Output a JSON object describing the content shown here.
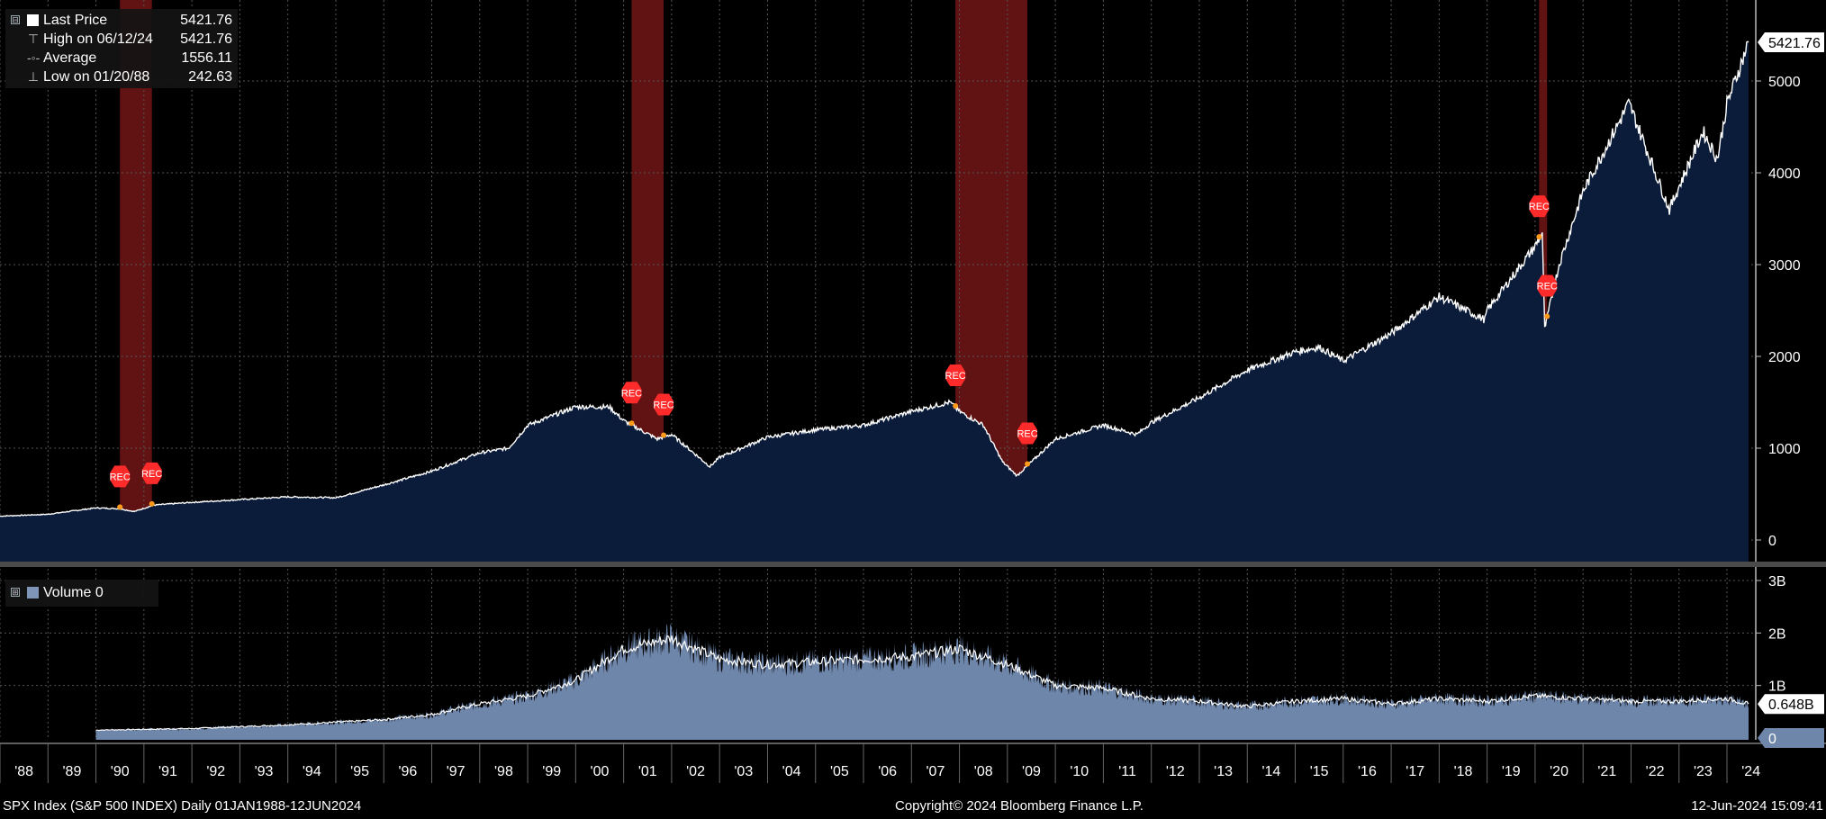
{
  "legend": {
    "last_price_label": "Last Price",
    "last_price_value": "5421.76",
    "high_label": "High on 06/12/24",
    "high_value": "5421.76",
    "average_label": "Average",
    "average_value": "1556.11",
    "low_label": "Low on 01/20/88",
    "low_value": "242.63",
    "volume_label": "Volume 0",
    "expand_glyph": "⊟",
    "expand_glyph_vol": "⊞"
  },
  "footer": {
    "left": "SPX Index (S&P 500 INDEX)  Daily 01JAN1988-12JUN2024",
    "mid": "Copyright© 2024 Bloomberg Finance L.P.",
    "right": "12-Jun-2024 15:09:41"
  },
  "colors": {
    "background": "#000000",
    "price_area": "#0b1c3a",
    "price_line": "#ffffff",
    "volume_area": "#6f86ab",
    "recession_band": "#8a1a1a",
    "rec_marker": "#ff2a2a",
    "grid": "#3a3a3a"
  },
  "chart_data": [
    {
      "type": "area",
      "title": "SPX Index (S&P 500 INDEX)",
      "series": [
        {
          "name": "Last Price",
          "x": [
            1988.0,
            1989.0,
            1990.0,
            1990.5,
            1990.8,
            1991.2,
            1992.0,
            1993.0,
            1994.0,
            1995.0,
            1996.0,
            1997.0,
            1998.0,
            1998.6,
            1999.0,
            2000.0,
            2000.7,
            2001.0,
            2001.7,
            2002.0,
            2002.8,
            2003.0,
            2004.0,
            2005.0,
            2006.0,
            2007.0,
            2007.8,
            2008.0,
            2008.5,
            2008.9,
            2009.2,
            2010.0,
            2011.0,
            2011.7,
            2012.0,
            2013.0,
            2014.0,
            2015.0,
            2015.5,
            2016.0,
            2017.0,
            2018.0,
            2018.95,
            2019.0,
            2020.0,
            2020.15,
            2020.2,
            2020.5,
            2021.0,
            2021.95,
            2022.0,
            2022.8,
            2023.0,
            2023.5,
            2023.8,
            2024.0,
            2024.45
          ],
          "values": [
            260,
            280,
            350,
            340,
            310,
            380,
            410,
            440,
            470,
            460,
            600,
            750,
            950,
            1000,
            1250,
            1450,
            1450,
            1300,
            1100,
            1150,
            800,
            900,
            1120,
            1200,
            1250,
            1400,
            1500,
            1400,
            1250,
            850,
            700,
            1100,
            1250,
            1150,
            1280,
            1550,
            1850,
            2050,
            2100,
            1950,
            2250,
            2650,
            2400,
            2500,
            3200,
            3350,
            2300,
            3000,
            3800,
            4750,
            4700,
            3600,
            3850,
            4450,
            4150,
            4750,
            5421.76
          ]
        }
      ],
      "recession_periods": [
        [
          "1990-07",
          "1991-03"
        ],
        [
          "2001-03",
          "2001-11"
        ],
        [
          "2007-12",
          "2009-06"
        ],
        [
          "2020-02",
          "2020-04"
        ]
      ],
      "recession_marker_label": "REC",
      "ytick_labels": [
        "0",
        "1000",
        "2000",
        "3000",
        "4000",
        "5000"
      ],
      "ylim": [
        -150,
        5800
      ],
      "last_value_label": "5421.76",
      "xtick_labels": [
        "'88",
        "'89",
        "'90",
        "'91",
        "'92",
        "'93",
        "'94",
        "'95",
        "'96",
        "'97",
        "'98",
        "'99",
        "'00",
        "'01",
        "'02",
        "'03",
        "'04",
        "'05",
        "'06",
        "'07",
        "'08",
        "'09",
        "'10",
        "'11",
        "'12",
        "'13",
        "'14",
        "'15",
        "'16",
        "'17",
        "'18",
        "'19",
        "'20",
        "'21",
        "'22",
        "'23",
        "'24"
      ],
      "xlim": [
        1988.0,
        2024.6
      ],
      "grid": true
    },
    {
      "type": "area",
      "title": "Volume 0",
      "series": [
        {
          "name": "Volume 0",
          "x": [
            1990.0,
            1992.0,
            1994.0,
            1996.0,
            1997.0,
            1998.0,
            1999.0,
            2000.0,
            2001.0,
            2002.0,
            2003.0,
            2004.0,
            2005.0,
            2006.0,
            2007.0,
            2008.0,
            2009.0,
            2010.0,
            2011.0,
            2012.0,
            2013.0,
            2014.0,
            2015.0,
            2016.0,
            2017.0,
            2018.0,
            2019.0,
            2020.0,
            2021.0,
            2022.0,
            2023.0,
            2024.0,
            2024.45
          ],
          "values": [
            0.15,
            0.18,
            0.25,
            0.35,
            0.45,
            0.65,
            0.8,
            1.1,
            1.7,
            1.9,
            1.5,
            1.4,
            1.45,
            1.5,
            1.55,
            1.7,
            1.4,
            1.0,
            0.95,
            0.75,
            0.7,
            0.6,
            0.7,
            0.75,
            0.65,
            0.75,
            0.7,
            0.8,
            0.75,
            0.7,
            0.7,
            0.75,
            0.648
          ]
        }
      ],
      "ytick_labels": [
        "0",
        "1B",
        "2B",
        "3B"
      ],
      "ylim": [
        0,
        3.1
      ],
      "last_value_label": "0.648B",
      "zero_label": "0",
      "grid": true
    }
  ]
}
